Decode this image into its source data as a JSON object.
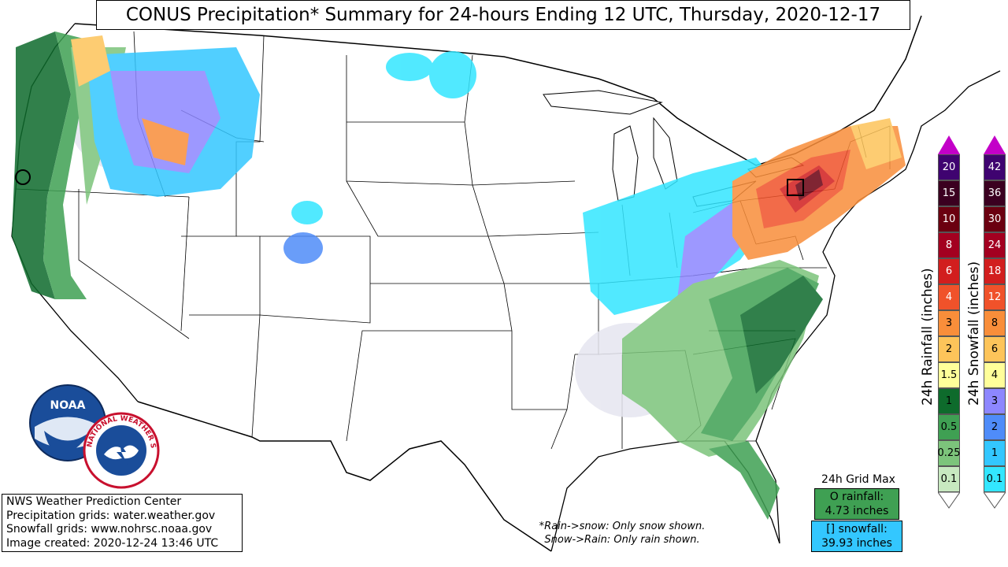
{
  "title": "CONUS Precipitation* Summary for 24-hours Ending 12 UTC, Thursday, 2020-12-17",
  "credits": [
    "NWS Weather Prediction Center",
    "Precipitation grids: water.weather.gov",
    "Snowfall grids: www.nohrsc.noaa.gov",
    "Image created: 2020-12-24 13:46 UTC"
  ],
  "note_line1": "*Rain->snow: Only snow shown.",
  "note_line2": "Snow->Rain: Only rain shown.",
  "grid_max": {
    "title": "24h Grid Max",
    "rain_label": "O rainfall:",
    "rain_value": "4.73 inches",
    "snow_label": "[] snowfall:",
    "snow_value": "39.93 inches"
  },
  "rain_legend": {
    "label": "24h Rainfall (inches)",
    "levels": [
      "20",
      "15",
      "10",
      "8",
      "6",
      "4",
      "3",
      "2",
      "1.5",
      "1",
      "0.5",
      "0.25",
      "0.1"
    ],
    "colors": [
      "#3f0370",
      "#3b0020",
      "#6b0010",
      "#a30020",
      "#d21e1e",
      "#f0522a",
      "#f98e3a",
      "#fdc45a",
      "#ffff9a",
      "#0e6b2c",
      "#3fa053",
      "#7cc47b",
      "#c7e8c0"
    ],
    "top_color": "#c300c8"
  },
  "snow_legend": {
    "label": "24h Snowfall (inches)",
    "levels": [
      "42",
      "36",
      "30",
      "24",
      "18",
      "12",
      "8",
      "6",
      "4",
      "3",
      "2",
      "1",
      "0.1"
    ],
    "colors": [
      "#3f0370",
      "#3b0020",
      "#6b0010",
      "#a30020",
      "#d21e1e",
      "#f0522a",
      "#f98e3a",
      "#fdc45a",
      "#ffff9a",
      "#8d87ff",
      "#4f8cf9",
      "#33c7ff",
      "#33e6ff"
    ],
    "top_color": "#c300c8"
  },
  "logos": {
    "noaa_text": "NOAA",
    "nws_text": "NATIONAL WEATHER SERVICE"
  },
  "map_features": {
    "land_color": "#ffffff",
    "border_color": "#000000",
    "light_precip_color": "#e6e6f0"
  }
}
